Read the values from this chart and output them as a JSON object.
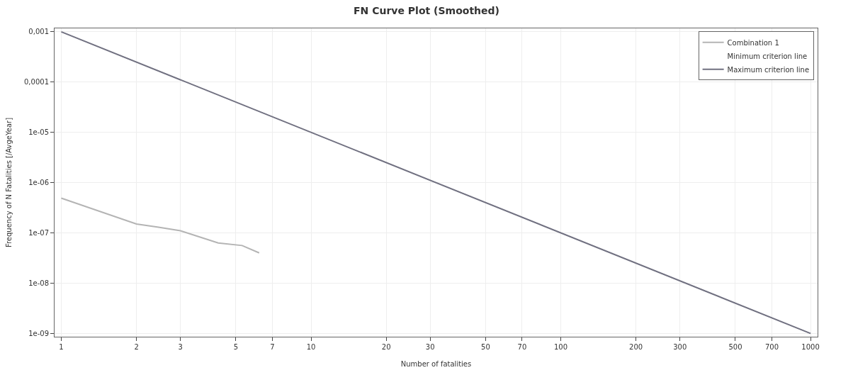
{
  "chart_data": {
    "type": "line",
    "title": "FN Curve Plot (Smoothed)",
    "xlabel": "Number of fatalities",
    "ylabel": "Frequency of N Fatalities [/AvgeYear]",
    "log": "xy",
    "grid": true,
    "legend": "top right",
    "marker": "none",
    "line_style": "solid",
    "xlim": [
      0.94,
      1067
    ],
    "ylim": [
      8.6e-10,
      0.00117
    ],
    "xticks": [
      1,
      2,
      3,
      5,
      7,
      10,
      20,
      30,
      50,
      70,
      100,
      200,
      300,
      500,
      700,
      1000
    ],
    "yticks": [
      {
        "value": 0.001,
        "label": "0,001"
      },
      {
        "value": 0.0001,
        "label": "0,0001"
      },
      {
        "value": 1e-05,
        "label": "1e-05"
      },
      {
        "value": 1e-06,
        "label": "1e-06"
      },
      {
        "value": 1e-07,
        "label": "1e-07"
      },
      {
        "value": 1e-08,
        "label": "1e-08"
      },
      {
        "value": 1e-09,
        "label": "1e-09"
      }
    ],
    "series": [
      {
        "name": "Combination 1",
        "color": "#b4b4b4",
        "x": [
          1,
          2,
          2.45,
          3,
          4.25,
          5.3,
          6.2
        ],
        "values": [
          4.9e-07,
          1.5e-07,
          1.3e-07,
          1.1e-07,
          6.3e-08,
          5.6e-08,
          4e-08
        ]
      },
      {
        "name": "Minimum criterion line"
      },
      {
        "name": "Maximum criterion line",
        "color": "#707080",
        "x": [
          1,
          1000
        ],
        "values": [
          0.001,
          1e-09
        ]
      }
    ]
  }
}
